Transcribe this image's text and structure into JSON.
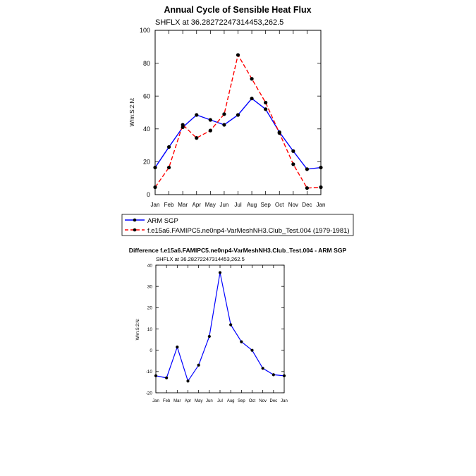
{
  "chart_data": [
    {
      "type": "line",
      "title": "Annual Cycle of Sensible Heat Flux",
      "subtitle": "SHFLX at 36.28272247314453,262.5",
      "xlabel": "",
      "ylabel": "W/m:S:2:N:",
      "categories": [
        "Jan",
        "Feb",
        "Mar",
        "Apr",
        "May",
        "Jun",
        "Jul",
        "Aug",
        "Sep",
        "Oct",
        "Nov",
        "Dec",
        "Jan"
      ],
      "ylim": [
        0,
        100
      ],
      "yticks": [
        "0",
        "20",
        "40",
        "60",
        "80",
        "100"
      ],
      "legend_position": "bottom",
      "series": [
        {
          "name": "ARM SGP",
          "color": "#0000ff",
          "style": "solid",
          "values": [
            16.5,
            29,
            41,
            48.5,
            45.5,
            42.5,
            48.5,
            58.5,
            52,
            38,
            26.5,
            15.5,
            16.5
          ]
        },
        {
          "name": "f.e15a6.FAMIPC5.ne0np4-VarMeshNH3.Club_Test.004 (1979-1981)",
          "color": "#ff0000",
          "style": "dashed",
          "values": [
            4.5,
            16.5,
            42.5,
            34.5,
            39,
            49,
            85,
            70.5,
            56,
            37.5,
            18.5,
            4,
            4.5
          ]
        }
      ]
    },
    {
      "type": "line",
      "title": "Difference f.e15a6.FAMIPC5.ne0np4-VarMeshNH3.Club_Test.004 - ARM SGP",
      "subtitle": "SHFLX at 36.28272247314453,262.5",
      "xlabel": "",
      "ylabel": "W/m:S:2:N:",
      "categories": [
        "Jan",
        "Feb",
        "Mar",
        "Apr",
        "May",
        "Jun",
        "Jul",
        "Aug",
        "Sep",
        "Oct",
        "Nov",
        "Dec",
        "Jan"
      ],
      "ylim": [
        -20,
        40
      ],
      "yticks": [
        "-20",
        "-10",
        "0",
        "10",
        "20",
        "30",
        "40"
      ],
      "series": [
        {
          "name": "Difference",
          "color": "#0000ff",
          "style": "solid",
          "values": [
            -12,
            -13,
            1.5,
            -14.5,
            -7,
            6.5,
            36.5,
            12,
            4,
            0,
            -8.5,
            -11.5,
            -12
          ]
        }
      ]
    }
  ]
}
